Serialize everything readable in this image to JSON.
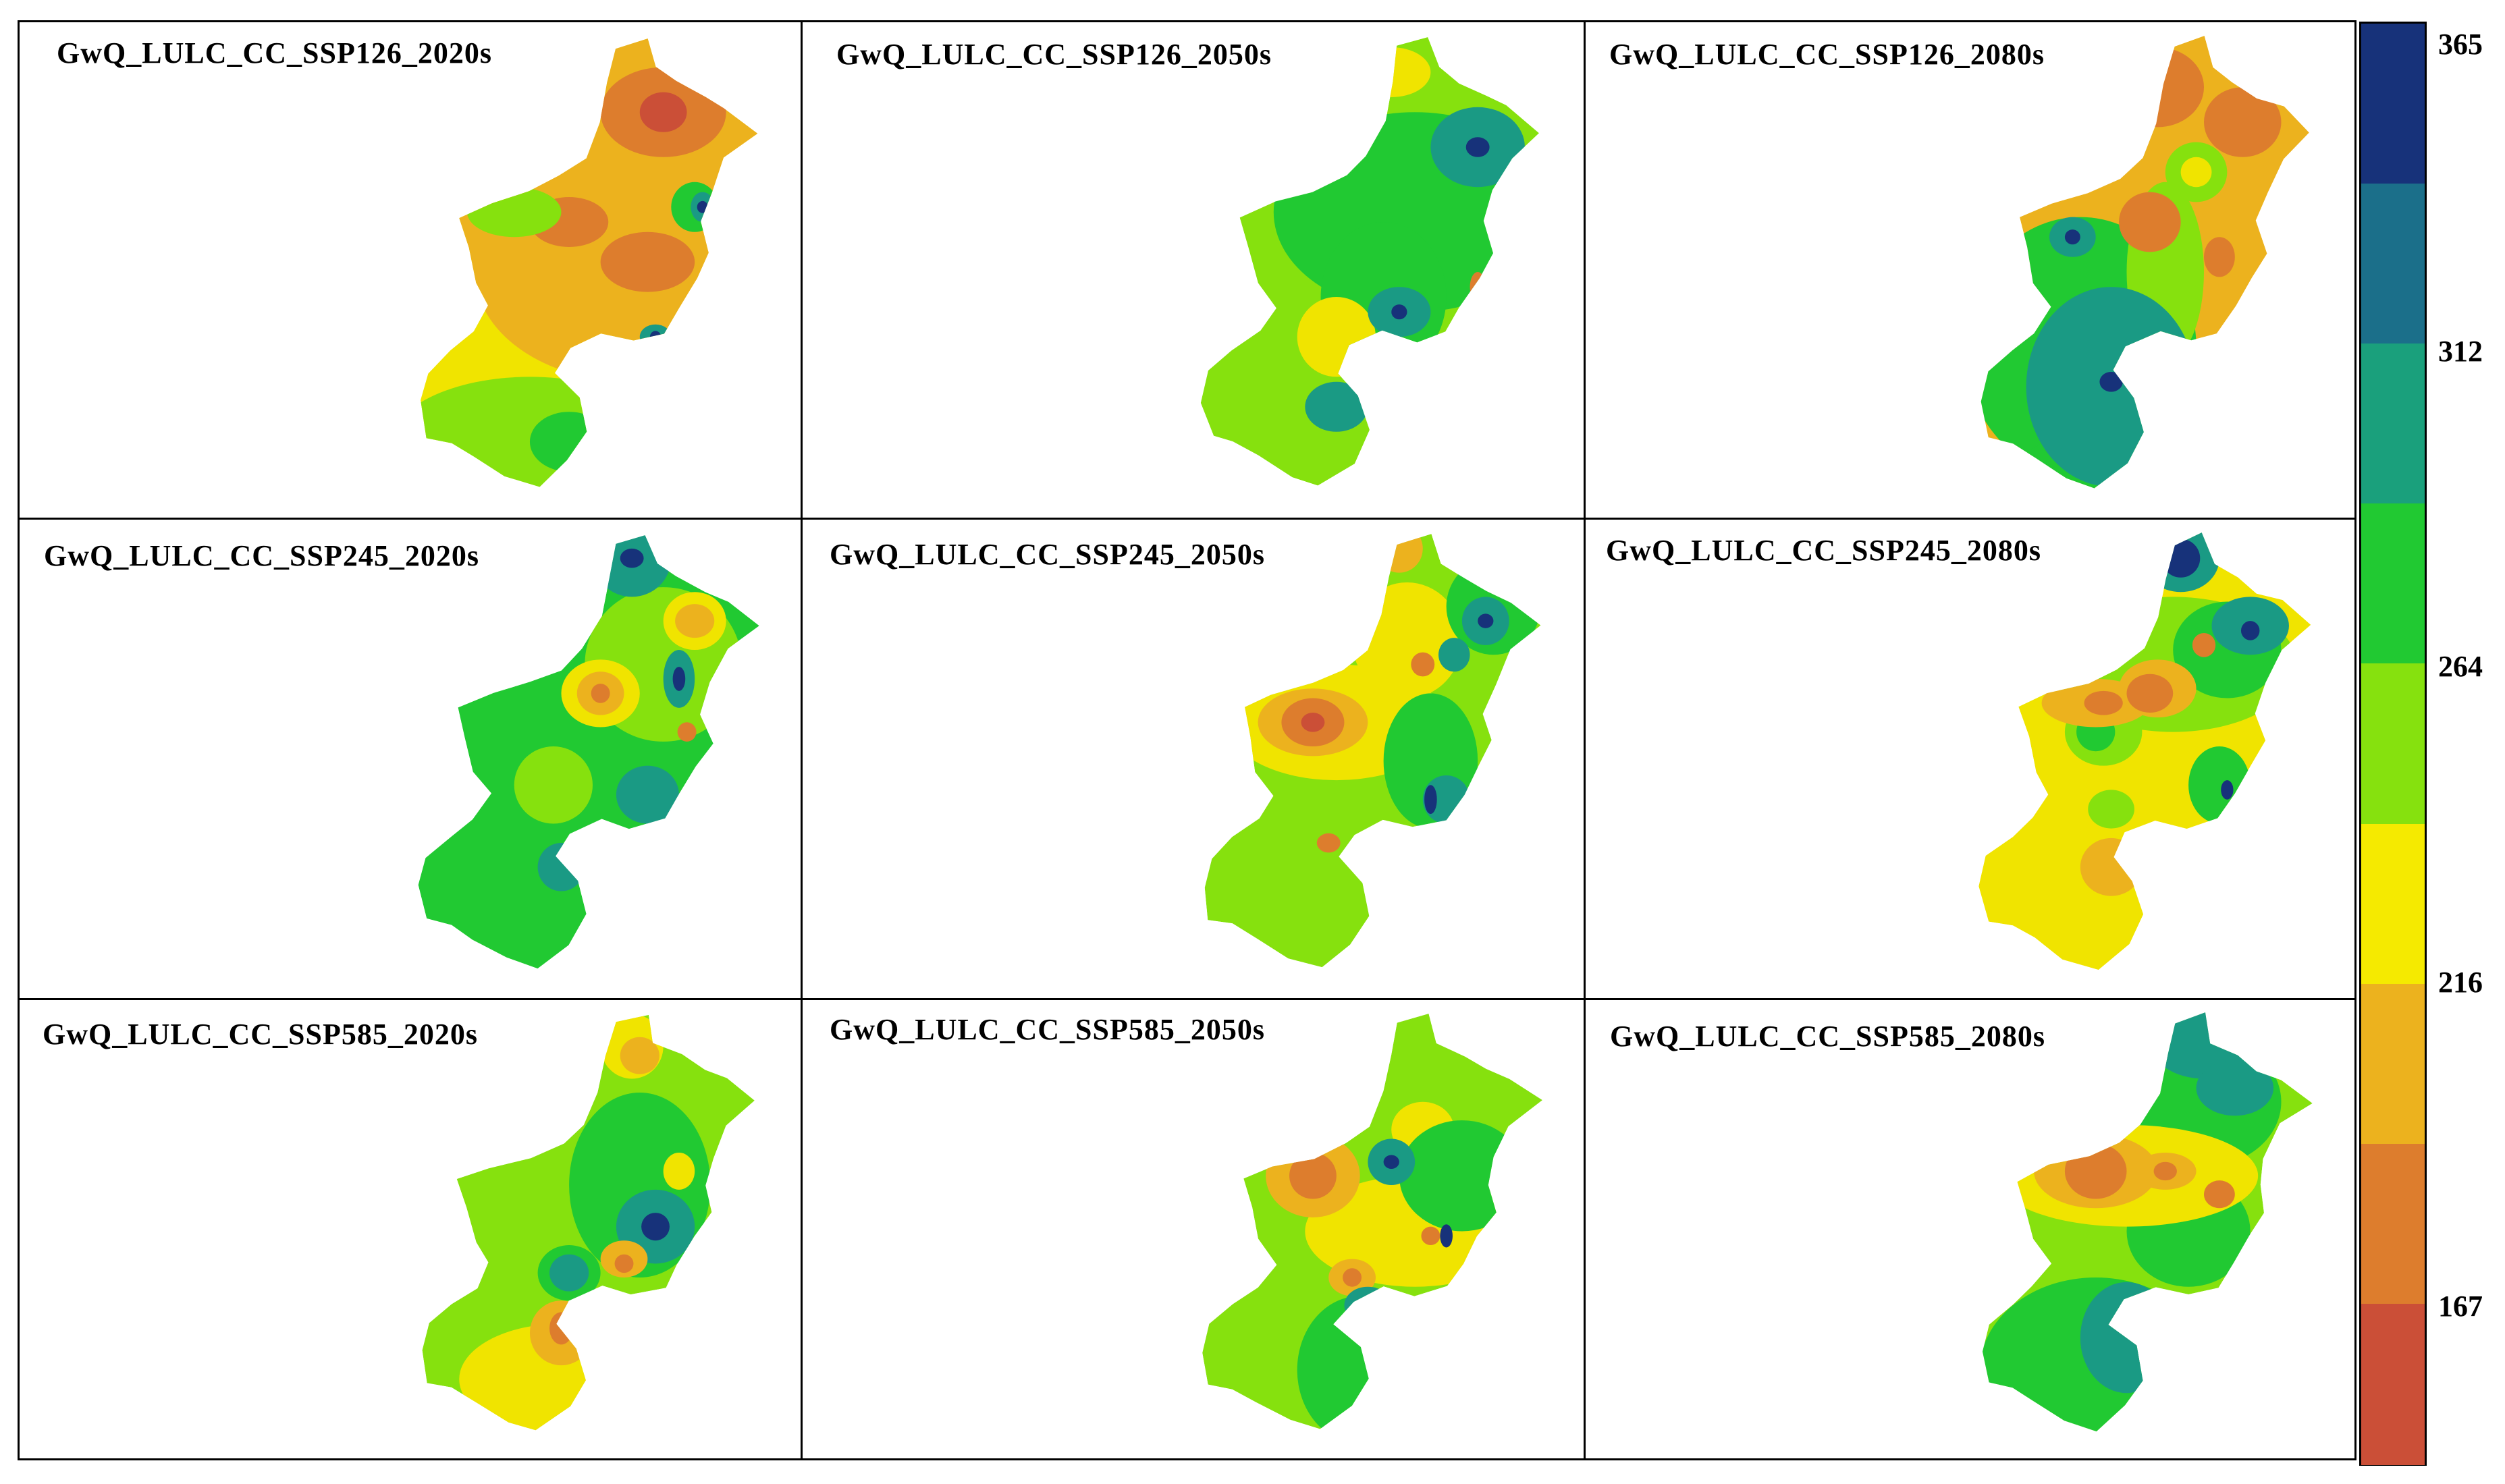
{
  "panels": [
    {
      "title": "GwQ_LULC_CC_SSP126_2020s",
      "base": "#f2e600",
      "regions": [
        [
          "#f0e400",
          [
            [
              0.5,
              0.58,
              0.42,
              0.28
            ]
          ]
        ],
        [
          "#ecb21e",
          [
            [
              0.76,
              0.3,
              0.26,
              0.3
            ],
            [
              0.78,
              0.5,
              0.2,
              0.22
            ]
          ]
        ],
        [
          "#dd7d2d",
          [
            [
              0.82,
              0.18,
              0.08,
              0.09
            ],
            [
              0.8,
              0.48,
              0.06,
              0.06
            ],
            [
              0.7,
              0.4,
              0.05,
              0.05
            ]
          ]
        ],
        [
          "#cb4f37",
          [
            [
              0.82,
              0.18,
              0.03,
              0.04
            ]
          ]
        ],
        [
          "#86e10e",
          [
            [
              0.65,
              0.85,
              0.18,
              0.14
            ],
            [
              0.63,
              0.38,
              0.06,
              0.05
            ]
          ]
        ],
        [
          "#21c932",
          [
            [
              0.7,
              0.84,
              0.05,
              0.06
            ],
            [
              0.86,
              0.37,
              0.03,
              0.05
            ]
          ]
        ],
        [
          "#1a9a84",
          [
            [
              0.87,
              0.37,
              0.015,
              0.03
            ],
            [
              0.81,
              0.63,
              0.02,
              0.025
            ]
          ]
        ],
        [
          "#17327a",
          [
            [
              0.87,
              0.37,
              0.007,
              0.012
            ],
            [
              0.81,
              0.63,
              0.007,
              0.012
            ]
          ]
        ]
      ]
    },
    {
      "title": "GwQ_LULC_CC_SSP126_2050s",
      "base": "#86e10e",
      "regions": [
        [
          "#21c932",
          [
            [
              0.78,
              0.38,
              0.18,
              0.2
            ],
            [
              0.74,
              0.55,
              0.08,
              0.15
            ]
          ]
        ],
        [
          "#f0e400",
          [
            [
              0.68,
              0.63,
              0.05,
              0.08
            ],
            [
              0.75,
              0.1,
              0.05,
              0.05
            ]
          ]
        ],
        [
          "#1a9a84",
          [
            [
              0.86,
              0.25,
              0.06,
              0.08
            ],
            [
              0.76,
              0.58,
              0.04,
              0.05
            ],
            [
              0.68,
              0.77,
              0.04,
              0.05
            ]
          ]
        ],
        [
          "#17327a",
          [
            [
              0.86,
              0.25,
              0.015,
              0.02
            ],
            [
              0.76,
              0.58,
              0.01,
              0.015
            ]
          ]
        ],
        [
          "#dd7d2d",
          [
            [
              0.86,
              0.53,
              0.01,
              0.03
            ]
          ]
        ]
      ]
    },
    {
      "title": "GwQ_LULC_CC_SSP126_2080s",
      "base": "#ecb21e",
      "regions": [
        [
          "#21c932",
          [
            [
              0.64,
              0.65,
              0.15,
              0.26
            ],
            [
              0.66,
              0.9,
              0.1,
              0.08
            ]
          ]
        ],
        [
          "#86e10e",
          [
            [
              0.75,
              0.5,
              0.05,
              0.18
            ],
            [
              0.79,
              0.3,
              0.04,
              0.06
            ]
          ]
        ],
        [
          "#1a9a84",
          [
            [
              0.68,
              0.73,
              0.11,
              0.2
            ],
            [
              0.63,
              0.43,
              0.03,
              0.04
            ]
          ]
        ],
        [
          "#17327a",
          [
            [
              0.68,
              0.72,
              0.015,
              0.02
            ],
            [
              0.63,
              0.43,
              0.01,
              0.015
            ]
          ]
        ],
        [
          "#dd7d2d",
          [
            [
              0.74,
              0.13,
              0.06,
              0.08
            ],
            [
              0.85,
              0.2,
              0.05,
              0.07
            ],
            [
              0.73,
              0.4,
              0.04,
              0.06
            ],
            [
              0.82,
              0.47,
              0.02,
              0.04
            ]
          ]
        ],
        [
          "#f0e400",
          [
            [
              0.79,
              0.3,
              0.02,
              0.03
            ]
          ]
        ]
      ]
    },
    {
      "title": "GwQ_LULC_CC_SSP245_2020s",
      "base": "#21c932",
      "regions": [
        [
          "#86e10e",
          [
            [
              0.82,
              0.3,
              0.1,
              0.16
            ],
            [
              0.68,
              0.55,
              0.05,
              0.08
            ]
          ]
        ],
        [
          "#1a9a84",
          [
            [
              0.78,
              0.08,
              0.05,
              0.08
            ],
            [
              0.8,
              0.57,
              0.04,
              0.06
            ],
            [
              0.69,
              0.72,
              0.03,
              0.05
            ],
            [
              0.84,
              0.33,
              0.02,
              0.06
            ]
          ]
        ],
        [
          "#17327a",
          [
            [
              0.78,
              0.08,
              0.015,
              0.02
            ],
            [
              0.84,
              0.33,
              0.008,
              0.025
            ]
          ]
        ],
        [
          "#f0e400",
          [
            [
              0.86,
              0.21,
              0.04,
              0.06
            ],
            [
              0.74,
              0.36,
              0.05,
              0.07
            ]
          ]
        ],
        [
          "#ecb21e",
          [
            [
              0.86,
              0.21,
              0.025,
              0.035
            ],
            [
              0.74,
              0.36,
              0.03,
              0.045
            ]
          ]
        ],
        [
          "#dd7d2d",
          [
            [
              0.74,
              0.36,
              0.012,
              0.02
            ],
            [
              0.85,
              0.44,
              0.012,
              0.02
            ]
          ]
        ]
      ]
    },
    {
      "title": "GwQ_LULC_CC_SSP245_2050s",
      "base": "#86e10e",
      "regions": [
        [
          "#f0e400",
          [
            [
              0.68,
              0.42,
              0.14,
              0.12
            ],
            [
              0.77,
              0.25,
              0.07,
              0.12
            ]
          ]
        ],
        [
          "#ecb21e",
          [
            [
              0.65,
              0.42,
              0.07,
              0.07
            ],
            [
              0.76,
              0.06,
              0.03,
              0.05
            ]
          ]
        ],
        [
          "#dd7d2d",
          [
            [
              0.65,
              0.42,
              0.04,
              0.05
            ],
            [
              0.79,
              0.3,
              0.015,
              0.025
            ],
            [
              0.67,
              0.67,
              0.015,
              0.02
            ]
          ]
        ],
        [
          "#cb4f37",
          [
            [
              0.65,
              0.42,
              0.015,
              0.02
            ]
          ]
        ],
        [
          "#21c932",
          [
            [
              0.88,
              0.18,
              0.06,
              0.1
            ],
            [
              0.8,
              0.5,
              0.06,
              0.14
            ]
          ]
        ],
        [
          "#1a9a84",
          [
            [
              0.87,
              0.21,
              0.03,
              0.05
            ],
            [
              0.82,
              0.58,
              0.03,
              0.05
            ],
            [
              0.83,
              0.28,
              0.02,
              0.035
            ]
          ]
        ],
        [
          "#17327a",
          [
            [
              0.87,
              0.21,
              0.01,
              0.015
            ],
            [
              0.8,
              0.58,
              0.008,
              0.03
            ]
          ]
        ]
      ]
    },
    {
      "title": "GwQ_LULC_CC_SSP245_2080s",
      "base": "#f0e400",
      "regions": [
        [
          "#86e10e",
          [
            [
              0.76,
              0.3,
              0.16,
              0.14
            ],
            [
              0.67,
              0.44,
              0.05,
              0.07
            ],
            [
              0.68,
              0.6,
              0.03,
              0.04
            ]
          ]
        ],
        [
          "#21c932",
          [
            [
              0.83,
              0.27,
              0.07,
              0.1
            ],
            [
              0.66,
              0.44,
              0.025,
              0.04
            ],
            [
              0.82,
              0.55,
              0.04,
              0.08
            ]
          ]
        ],
        [
          "#1a9a84",
          [
            [
              0.86,
              0.22,
              0.05,
              0.06
            ],
            [
              0.77,
              0.08,
              0.05,
              0.07
            ]
          ]
        ],
        [
          "#17327a",
          [
            [
              0.77,
              0.08,
              0.025,
              0.04
            ],
            [
              0.86,
              0.23,
              0.012,
              0.02
            ],
            [
              0.83,
              0.56,
              0.008,
              0.02
            ]
          ]
        ],
        [
          "#ecb21e",
          [
            [
              0.66,
              0.38,
              0.07,
              0.05
            ],
            [
              0.74,
              0.35,
              0.05,
              0.06
            ],
            [
              0.68,
              0.72,
              0.04,
              0.06
            ]
          ]
        ],
        [
          "#dd7d2d",
          [
            [
              0.67,
              0.38,
              0.025,
              0.025
            ],
            [
              0.73,
              0.36,
              0.03,
              0.04
            ],
            [
              0.8,
              0.26,
              0.015,
              0.025
            ]
          ]
        ]
      ]
    },
    {
      "title": "GwQ_LULC_CC_SSP585_2020s",
      "base": "#86e10e",
      "regions": [
        [
          "#21c932",
          [
            [
              0.79,
              0.4,
              0.09,
              0.2
            ],
            [
              0.7,
              0.59,
              0.04,
              0.06
            ]
          ]
        ],
        [
          "#1a9a84",
          [
            [
              0.81,
              0.49,
              0.05,
              0.08
            ],
            [
              0.7,
              0.59,
              0.025,
              0.04
            ]
          ]
        ],
        [
          "#17327a",
          [
            [
              0.81,
              0.49,
              0.018,
              0.03
            ]
          ]
        ],
        [
          "#f0e400",
          [
            [
              0.69,
              0.82,
              0.13,
              0.12
            ],
            [
              0.78,
              0.1,
              0.04,
              0.07
            ],
            [
              0.84,
              0.37,
              0.02,
              0.04
            ]
          ]
        ],
        [
          "#ecb21e",
          [
            [
              0.69,
              0.72,
              0.04,
              0.07
            ],
            [
              0.79,
              0.12,
              0.025,
              0.04
            ],
            [
              0.77,
              0.56,
              0.03,
              0.04
            ]
          ]
        ],
        [
          "#dd7d2d",
          [
            [
              0.69,
              0.71,
              0.015,
              0.035
            ],
            [
              0.77,
              0.57,
              0.012,
              0.02
            ]
          ]
        ]
      ]
    },
    {
      "title": "GwQ_LULC_CC_SSP585_2050s",
      "base": "#86e10e",
      "regions": [
        [
          "#f0e400",
          [
            [
              0.78,
              0.5,
              0.14,
              0.12
            ],
            [
              0.79,
              0.28,
              0.04,
              0.06
            ]
          ]
        ],
        [
          "#ecb21e",
          [
            [
              0.65,
              0.38,
              0.06,
              0.09
            ],
            [
              0.7,
              0.6,
              0.03,
              0.04
            ]
          ]
        ],
        [
          "#dd7d2d",
          [
            [
              0.65,
              0.38,
              0.03,
              0.05
            ],
            [
              0.7,
              0.6,
              0.012,
              0.02
            ],
            [
              0.8,
              0.51,
              0.012,
              0.02
            ]
          ]
        ],
        [
          "#21c932",
          [
            [
              0.84,
              0.38,
              0.08,
              0.12
            ],
            [
              0.71,
              0.8,
              0.08,
              0.16
            ]
          ]
        ],
        [
          "#1a9a84",
          [
            [
              0.75,
              0.35,
              0.03,
              0.05
            ],
            [
              0.72,
              0.66,
              0.03,
              0.04
            ]
          ]
        ],
        [
          "#17327a",
          [
            [
              0.75,
              0.35,
              0.01,
              0.015
            ],
            [
              0.72,
              0.66,
              0.008,
              0.015
            ],
            [
              0.82,
              0.51,
              0.008,
              0.025
            ]
          ]
        ]
      ]
    },
    {
      "title": "GwQ_LULC_CC_SSP585_2080s",
      "base": "#86e10e",
      "regions": [
        [
          "#21c932",
          [
            [
              0.8,
              0.22,
              0.1,
              0.14
            ],
            [
              0.66,
              0.8,
              0.15,
              0.2
            ],
            [
              0.78,
              0.5,
              0.08,
              0.12
            ]
          ]
        ],
        [
          "#1a9a84",
          [
            [
              0.8,
              0.09,
              0.07,
              0.08
            ],
            [
              0.84,
              0.19,
              0.05,
              0.06
            ],
            [
              0.7,
              0.73,
              0.06,
              0.12
            ]
          ]
        ],
        [
          "#17327a",
          [
            [
              0.7,
              0.7,
              0.012,
              0.02
            ]
          ]
        ],
        [
          "#f0e400",
          [
            [
              0.7,
              0.38,
              0.17,
              0.11
            ]
          ]
        ],
        [
          "#ecb21e",
          [
            [
              0.66,
              0.37,
              0.08,
              0.08
            ],
            [
              0.75,
              0.37,
              0.04,
              0.04
            ]
          ]
        ],
        [
          "#dd7d2d",
          [
            [
              0.66,
              0.37,
              0.04,
              0.06
            ],
            [
              0.75,
              0.37,
              0.015,
              0.02
            ],
            [
              0.82,
              0.42,
              0.02,
              0.03
            ]
          ]
        ]
      ]
    }
  ],
  "legend": {
    "colors": [
      "#17327a",
      "#1b6f8a",
      "#1aa07c",
      "#21c932",
      "#86e10e",
      "#f5ea00",
      "#ecb21e",
      "#dd7d2d",
      "#cb4f37"
    ],
    "labels": [
      "365",
      "312",
      "264",
      "216",
      "167"
    ]
  }
}
